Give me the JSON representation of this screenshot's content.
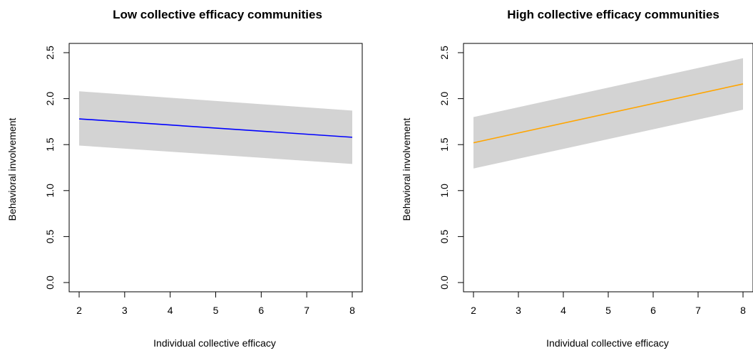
{
  "chart_data": [
    {
      "type": "line",
      "title": "Low collective efficacy communities",
      "xlabel": "Individual collective efficacy",
      "ylabel": "Behavioral involvement",
      "xlim": [
        2,
        8
      ],
      "ylim": [
        0,
        2.5
      ],
      "xticks": [
        "2",
        "3",
        "4",
        "5",
        "6",
        "7",
        "8"
      ],
      "yticks": [
        "0.0",
        "0.5",
        "1.0",
        "1.5",
        "2.0",
        "2.5"
      ],
      "line_color": "#0000ff",
      "band_color": "#d3d3d3",
      "series": [
        {
          "x": [
            2,
            8
          ],
          "y": [
            1.78,
            1.58
          ],
          "lower": [
            1.49,
            1.29
          ],
          "upper": [
            2.08,
            1.87
          ]
        }
      ],
      "grid": false
    },
    {
      "type": "line",
      "title": "High collective efficacy communities",
      "xlabel": "Individual collective efficacy",
      "ylabel": "Behavioral involvement",
      "xlim": [
        2,
        8
      ],
      "ylim": [
        0,
        2.5
      ],
      "xticks": [
        "2",
        "3",
        "4",
        "5",
        "6",
        "7",
        "8"
      ],
      "yticks": [
        "0.0",
        "0.5",
        "1.0",
        "1.5",
        "2.0",
        "2.5"
      ],
      "line_color": "#ffa500",
      "band_color": "#d3d3d3",
      "series": [
        {
          "x": [
            2,
            8
          ],
          "y": [
            1.52,
            2.16
          ],
          "lower": [
            1.24,
            1.88
          ],
          "upper": [
            1.8,
            2.44
          ]
        }
      ],
      "grid": false
    }
  ]
}
